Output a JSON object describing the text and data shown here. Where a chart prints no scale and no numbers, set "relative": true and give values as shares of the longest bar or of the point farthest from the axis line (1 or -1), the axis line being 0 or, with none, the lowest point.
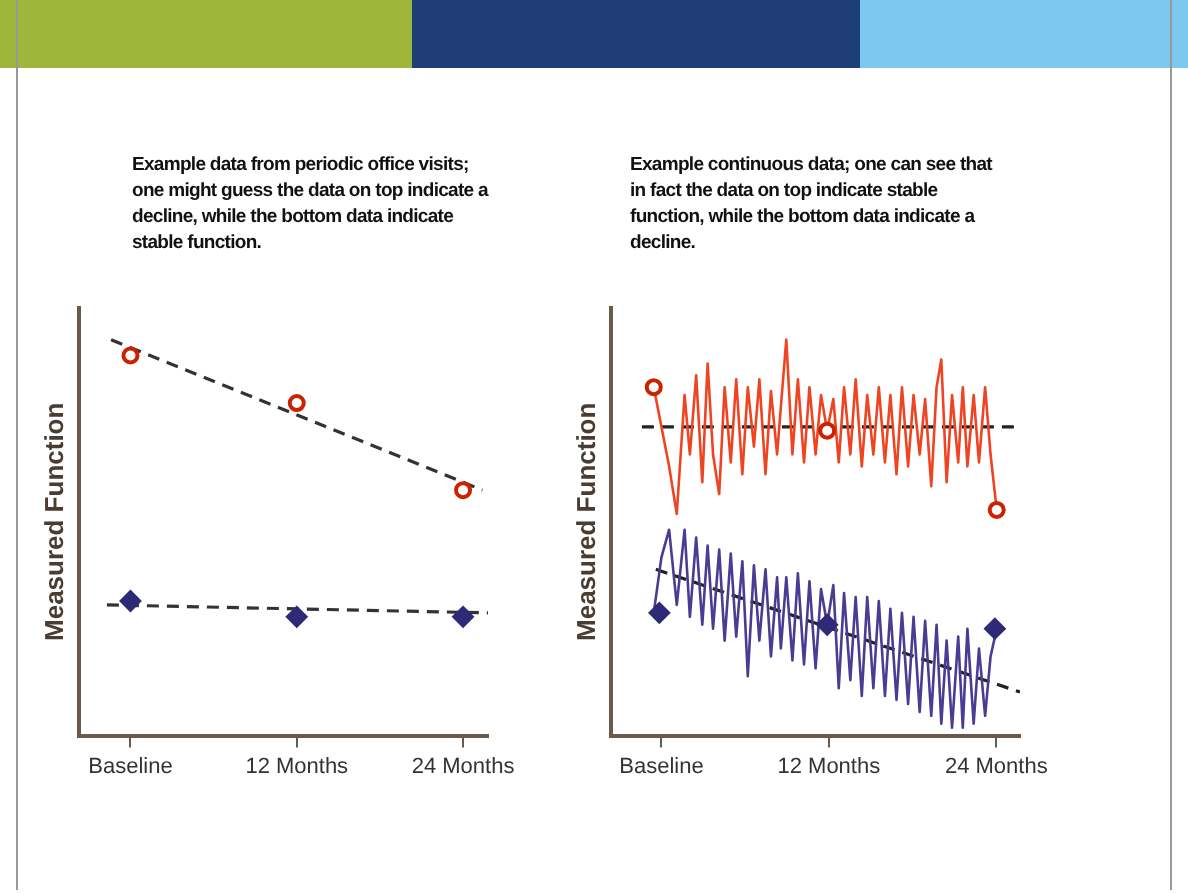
{
  "chart_data": [
    {
      "type": "scatter",
      "relative": true,
      "title": "Example data from periodic office visits; one might guess the data on top indicate a decline, while the bottom data indicate stable function.",
      "ylabel": "Measured Function",
      "xlim": [
        -3.7,
        25.8
      ],
      "xticks": [
        {
          "value": 0,
          "label": "Baseline"
        },
        {
          "value": 12,
          "label": "12 Months"
        },
        {
          "value": 24,
          "label": "24 Months"
        }
      ],
      "series": [
        {
          "type": "line",
          "line_style": "dashed",
          "marker": "none",
          "color": "#333333",
          "x": [
            -1.4,
            25.4
          ],
          "values": [
            1.0,
            0.62
          ]
        },
        {
          "type": "line",
          "line_style": "dashed",
          "marker": "none",
          "color": "#333333",
          "x": [
            -1.7,
            25.8
          ],
          "values": [
            0.33,
            0.31
          ]
        },
        {
          "marker": "circle",
          "color": "#cc2200",
          "x": [
            0,
            12,
            24
          ],
          "values": [
            0.96,
            0.84,
            0.62
          ]
        },
        {
          "marker": "diamond",
          "color": "#2e2a78",
          "x": [
            0,
            12,
            24
          ],
          "values": [
            0.34,
            0.3,
            0.3
          ]
        }
      ]
    },
    {
      "type": "line",
      "relative": true,
      "title": "Example continuous data; one can see that in fact the data on top indicate stable function, while the bottom data indicate a decline.",
      "ylabel": "Measured Function",
      "xlim": [
        -3.6,
        25.7
      ],
      "xticks": [
        {
          "value": 0,
          "label": "Baseline"
        },
        {
          "value": 12,
          "label": "12 Months"
        },
        {
          "value": 24,
          "label": "24 Months"
        }
      ],
      "series": [
        {
          "marker": "none",
          "color": "#ee4422",
          "x": [
            -0.55,
            0,
            0.55,
            1.1,
            1.66,
            2.04,
            2.49,
            2.93,
            3.31,
            3.7,
            4.14,
            4.53,
            4.97,
            5.36,
            5.8,
            6.19,
            6.63,
            7.02,
            7.46,
            7.85,
            8.29,
            8.56,
            8.95,
            9.39,
            9.78,
            10.22,
            10.61,
            11.05,
            11.44,
            11.88,
            12.32,
            12.71,
            13.09,
            13.54,
            13.92,
            14.36,
            14.75,
            15.19,
            15.58,
            16.02,
            16.41,
            16.85,
            17.24,
            17.68,
            18.07,
            18.51,
            18.9,
            19.34,
            19.72,
            20.06,
            20.44,
            20.83,
            21.27,
            21.6,
            21.93,
            22.38,
            22.76,
            23.2,
            23.59,
            24.03
          ],
          "values": [
            0.88,
            0.78,
            0.68,
            0.56,
            0.86,
            0.71,
            0.91,
            0.64,
            0.94,
            0.71,
            0.61,
            0.88,
            0.69,
            0.9,
            0.66,
            0.88,
            0.73,
            0.9,
            0.66,
            0.87,
            0.71,
            0.83,
            1.0,
            0.71,
            0.9,
            0.69,
            0.88,
            0.71,
            0.86,
            0.77,
            0.85,
            0.69,
            0.88,
            0.71,
            0.9,
            0.68,
            0.86,
            0.71,
            0.88,
            0.69,
            0.86,
            0.66,
            0.88,
            0.68,
            0.86,
            0.71,
            0.85,
            0.63,
            0.88,
            0.95,
            0.64,
            0.86,
            0.69,
            0.88,
            0.68,
            0.86,
            0.69,
            0.88,
            0.71,
            0.57
          ]
        },
        {
          "marker": "none",
          "color": "#4a3c92",
          "x": [
            -0.55,
            0,
            0.55,
            1.1,
            1.66,
            2.04,
            2.49,
            2.93,
            3.31,
            3.7,
            4.14,
            4.53,
            4.97,
            5.36,
            5.8,
            6.19,
            6.63,
            7.02,
            7.46,
            7.85,
            8.29,
            8.56,
            8.95,
            9.39,
            9.78,
            10.22,
            10.61,
            11.05,
            11.44,
            11.88,
            12.32,
            12.71,
            13.09,
            13.54,
            13.92,
            14.36,
            14.75,
            15.19,
            15.58,
            16.02,
            16.41,
            16.85,
            17.24,
            17.68,
            18.07,
            18.51,
            18.9,
            19.34,
            19.72,
            20.06,
            20.44,
            20.83,
            21.27,
            21.6,
            21.93,
            22.38,
            22.76,
            23.2,
            23.59,
            24.03
          ],
          "values": [
            0.31,
            0.45,
            0.52,
            0.33,
            0.52,
            0.3,
            0.5,
            0.28,
            0.48,
            0.27,
            0.47,
            0.24,
            0.46,
            0.25,
            0.44,
            0.15,
            0.43,
            0.24,
            0.42,
            0.2,
            0.4,
            0.22,
            0.4,
            0.19,
            0.41,
            0.18,
            0.39,
            0.17,
            0.37,
            0.28,
            0.38,
            0.12,
            0.36,
            0.14,
            0.35,
            0.1,
            0.35,
            0.12,
            0.34,
            0.1,
            0.32,
            0.09,
            0.31,
            0.08,
            0.3,
            0.06,
            0.29,
            0.05,
            0.28,
            0.03,
            0.24,
            0.02,
            0.25,
            0.02,
            0.27,
            0.03,
            0.22,
            0.05,
            0.2,
            0.27
          ]
        },
        {
          "type": "line",
          "line_style": "dashed",
          "marker": "none",
          "color": "#222222",
          "x": [
            -1.4,
            25.7
          ],
          "values": [
            0.78,
            0.78
          ]
        },
        {
          "type": "line",
          "line_style": "dashed",
          "marker": "none",
          "color": "#222222",
          "x": [
            -0.4,
            25.7
          ],
          "values": [
            0.42,
            0.11
          ]
        },
        {
          "type": "scatter",
          "marker": "circle",
          "color": "#cc2200",
          "x": [
            -0.55,
            11.88,
            24.03
          ],
          "values": [
            0.88,
            0.77,
            0.57
          ]
        },
        {
          "type": "scatter",
          "marker": "diamond",
          "color": "#2e2a78",
          "x": [
            -0.15,
            11.88,
            23.9
          ],
          "values": [
            0.31,
            0.28,
            0.27
          ]
        }
      ]
    }
  ]
}
